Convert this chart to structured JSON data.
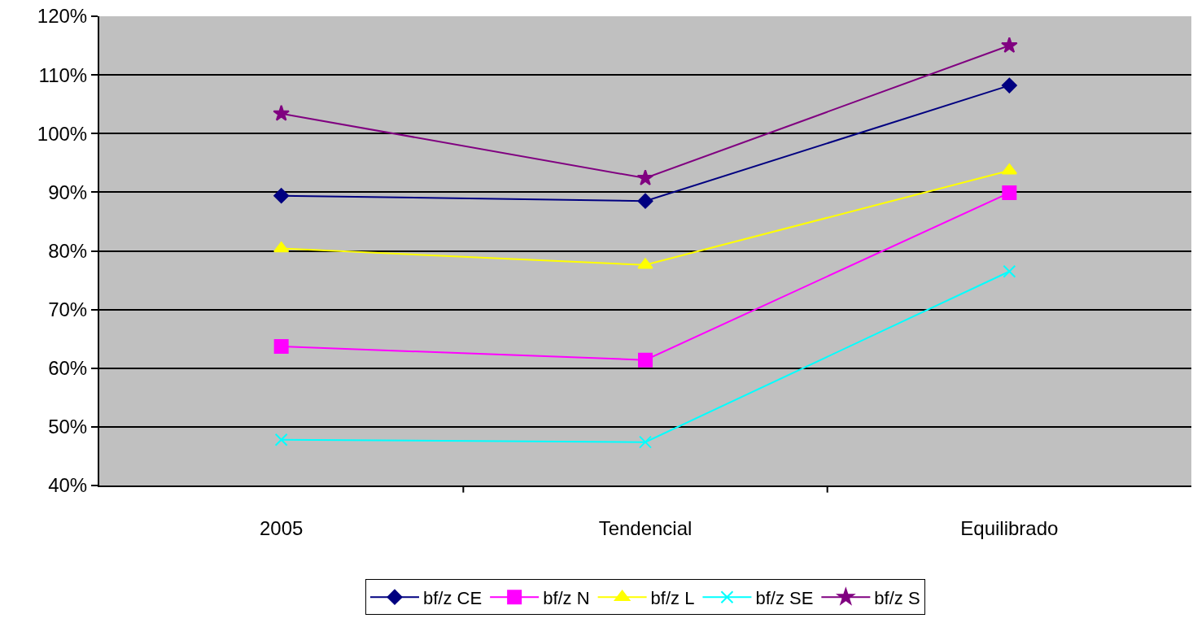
{
  "chart_data": {
    "type": "line",
    "categories": [
      "2005",
      "Tendencial",
      "Equilibrado"
    ],
    "series": [
      {
        "name": "bf/z CE",
        "color": "#000080",
        "marker": "diamond",
        "values": [
          89.4,
          88.5,
          108.2
        ]
      },
      {
        "name": "bf/z N",
        "color": "#ff00ff",
        "marker": "square",
        "values": [
          63.7,
          61.4,
          89.9
        ]
      },
      {
        "name": "bf/z L",
        "color": "#ffff00",
        "marker": "triangle",
        "values": [
          80.4,
          77.6,
          93.7
        ]
      },
      {
        "name": "bf/z SE",
        "color": "#00ffff",
        "marker": "cross",
        "values": [
          47.8,
          47.4,
          76.5
        ]
      },
      {
        "name": "bf/z S",
        "color": "#800080",
        "marker": "star",
        "values": [
          103.4,
          92.4,
          115
        ]
      }
    ],
    "ylim": [
      40,
      120
    ],
    "yticks": [
      {
        "value": 40,
        "label": "40%"
      },
      {
        "value": 50,
        "label": "50%"
      },
      {
        "value": 60,
        "label": "60%"
      },
      {
        "value": 70,
        "label": "70%"
      },
      {
        "value": 80,
        "label": "80%"
      },
      {
        "value": 90,
        "label": "90%"
      },
      {
        "value": 100,
        "label": "100%"
      },
      {
        "value": 110,
        "label": "110%"
      },
      {
        "value": 120,
        "label": "120%"
      }
    ],
    "grid": "y",
    "legend": "bottom",
    "line_style": "solid"
  }
}
